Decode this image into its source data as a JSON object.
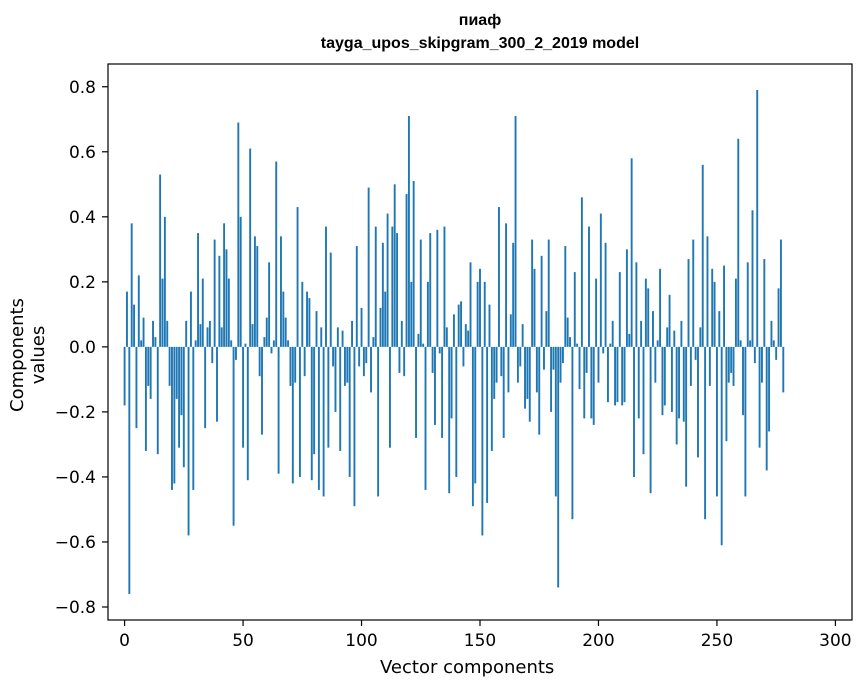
{
  "chart_data": {
    "type": "bar",
    "title": "пиаф",
    "subtitle": "tayga_upos_skipgram_300_2_2019 model",
    "xlabel": "Vector components",
    "ylabel": "Components values",
    "xlim": [
      -7,
      307
    ],
    "ylim": [
      -0.84,
      0.87
    ],
    "xticks": [
      0,
      50,
      100,
      150,
      200,
      250,
      300
    ],
    "yticks": [
      -0.8,
      -0.6,
      -0.4,
      -0.2,
      0.0,
      0.2,
      0.4,
      0.6,
      0.8
    ],
    "ytick_labels": [
      "−0.8",
      "−0.6",
      "−0.4",
      "−0.2",
      "0.0",
      "0.2",
      "0.4",
      "0.6",
      "0.8"
    ],
    "bar_color": "#1f77b4",
    "grid": false,
    "series": [
      {
        "x_start": 0,
        "values": [
          -0.18,
          0.17,
          -0.76,
          0.38,
          0.13,
          -0.25,
          0.22,
          0.02,
          0.09,
          -0.32,
          -0.12,
          -0.16,
          0.08,
          0.03,
          -0.33,
          0.53,
          0.21,
          0.4,
          0.08,
          -0.12,
          -0.44,
          -0.42,
          -0.16,
          -0.31,
          -0.21,
          -0.37,
          0.08,
          -0.58,
          0.17,
          -0.44,
          0.02,
          0.35,
          0.07,
          0.21,
          -0.25,
          0.06,
          0.08,
          -0.05,
          0.33,
          -0.23,
          0.28,
          0.06,
          0.38,
          0.3,
          0.21,
          0.02,
          -0.55,
          -0.04,
          0.69,
          0.4,
          -0.31,
          0.01,
          -0.41,
          0.61,
          0.07,
          0.34,
          0.31,
          -0.09,
          -0.27,
          0.03,
          0.09,
          0.26,
          -0.02,
          0.02,
          0.57,
          -0.39,
          0.34,
          0.17,
          0.09,
          0.02,
          -0.12,
          -0.42,
          -0.11,
          0.43,
          -0.4,
          0.2,
          -0.09,
          0.17,
          0.15,
          -0.41,
          -0.33,
          0.11,
          -0.44,
          0.06,
          -0.46,
          0.37,
          -0.31,
          0.29,
          -0.06,
          -0.2,
          0.06,
          -0.32,
          0.05,
          -0.12,
          -0.11,
          -0.4,
          0.08,
          -0.49,
          0.31,
          -0.06,
          0.12,
          -0.09,
          -0.05,
          0.49,
          -0.14,
          0.03,
          0.37,
          -0.46,
          0.12,
          0.32,
          0.17,
          0.41,
          -0.31,
          0.37,
          0.5,
          0.35,
          -0.08,
          0.08,
          -0.09,
          0.47,
          0.71,
          0.2,
          0.51,
          -0.28,
          0.04,
          0.33,
          0.01,
          -0.44,
          0.2,
          0.35,
          -0.08,
          -0.24,
          0.36,
          -0.02,
          -0.28,
          0.37,
          0.06,
          -0.45,
          -0.22,
          0.1,
          -0.4,
          0.13,
          0.14,
          -0.06,
          0.07,
          0.05,
          0.26,
          -0.49,
          -0.42,
          0.2,
          0.24,
          -0.58,
          0.2,
          -0.48,
          0.13,
          -0.32,
          -0.16,
          -0.11,
          0.43,
          -0.09,
          -0.28,
          0.38,
          -0.14,
          0.1,
          0.32,
          0.71,
          -0.11,
          -0.06,
          0.07,
          -0.19,
          -0.16,
          -0.23,
          0.33,
          0.24,
          -0.14,
          -0.27,
          0.28,
          -0.07,
          0.11,
          0.33,
          -0.2,
          -0.07,
          -0.46,
          -0.74,
          -0.11,
          -0.05,
          0.31,
          0.09,
          0.03,
          -0.53,
          0.23,
          0.01,
          -0.13,
          0.46,
          -0.22,
          -0.08,
          0.37,
          -0.22,
          -0.24,
          0.21,
          -0.11,
          0.41,
          -0.02,
          0.32,
          -0.17,
          0.01,
          0.08,
          -0.18,
          -0.17,
          0.23,
          -0.18,
          -0.17,
          0.3,
          0.04,
          0.58,
          -0.4,
          0.26,
          -0.22,
          0.08,
          -0.33,
          0.21,
          0.18,
          -0.45,
          0.11,
          -0.11,
          0.02,
          0.24,
          -0.21,
          -0.18,
          0.06,
          0.16,
          -0.2,
          0.05,
          -0.3,
          -0.22,
          0.08,
          -0.23,
          -0.43,
          0.27,
          -0.12,
          0.33,
          -0.04,
          -0.34,
          0.06,
          0.56,
          -0.53,
          0.34,
          -0.12,
          0.24,
          0.2,
          -0.46,
          0.11,
          -0.61,
          0.25,
          -0.29,
          -0.11,
          -0.08,
          -0.12,
          0.21,
          0.64,
          0.02,
          -0.21,
          -0.46,
          0.26,
          0.02,
          0.42,
          -0.05,
          0.79,
          -0.31,
          -0.11,
          0.27,
          -0.38,
          -0.26,
          0.08,
          0.02,
          -0.04,
          0.18,
          0.33,
          -0.14
        ]
      }
    ]
  }
}
